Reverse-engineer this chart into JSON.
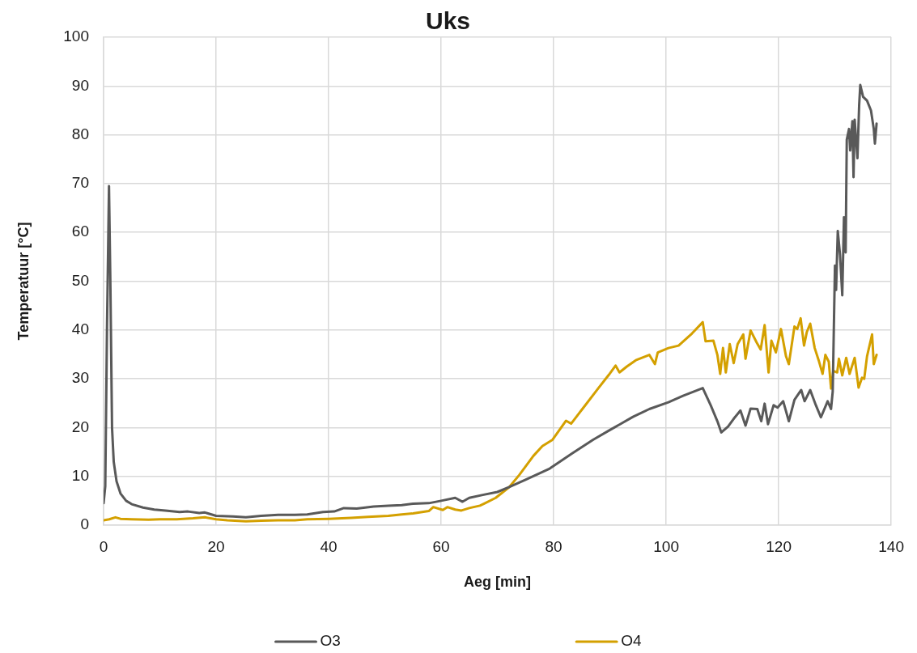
{
  "chart_data": {
    "type": "line",
    "title": "Uks",
    "xlabel": "Aeg [min]",
    "ylabel": "Temperatuur [°C]",
    "xlim": [
      0,
      140
    ],
    "xticks": [
      0,
      20,
      40,
      60,
      80,
      100,
      120,
      140
    ],
    "ylim": [
      0,
      100
    ],
    "yticks": [
      0,
      10,
      20,
      30,
      40,
      50,
      60,
      70,
      80,
      90,
      100
    ],
    "grid": true,
    "legend": "bottom",
    "marker": "none",
    "series": [
      {
        "name": "O3",
        "color": "#595959",
        "x": [
          0,
          0.3,
          0.6,
          0.96,
          1.2,
          1.5,
          1.8,
          2.3,
          3,
          4,
          5,
          7,
          9,
          11,
          13.5,
          15,
          17,
          18,
          20,
          23,
          25.3,
          28,
          31,
          34,
          36.2,
          39,
          41,
          42.7,
          45,
          48,
          50.6,
          53,
          55,
          57.8,
          60,
          62.5,
          63.8,
          65,
          67.4,
          70,
          72.1,
          75,
          79.3,
          83.3,
          87,
          90,
          94.1,
          97,
          100.4,
          103,
          106.5,
          107.9,
          109.1,
          109.8,
          111,
          112,
          113.2,
          114.1,
          115,
          116.2,
          116.9,
          117.5,
          118.1,
          119.1,
          119.8,
          120.8,
          121.8,
          122.8,
          124,
          124.6,
          125.6,
          126.6,
          127.5,
          128.7,
          129.3,
          129.6,
          130,
          130.2,
          130.5,
          130.9,
          131.3,
          131.6,
          131.9,
          132.1,
          132.5,
          132.7,
          133.1,
          133.3,
          133.5,
          134,
          134.3,
          134.5,
          135,
          135.7,
          136.4,
          136.9,
          137.1,
          137.4
        ],
        "values": [
          4.5,
          8,
          40,
          69.5,
          50,
          20,
          13,
          9,
          6.5,
          5,
          4.3,
          3.6,
          3.2,
          3.0,
          2.7,
          2.8,
          2.5,
          2.6,
          1.9,
          1.8,
          1.6,
          1.9,
          2.1,
          2.1,
          2.2,
          2.7,
          2.8,
          3.5,
          3.4,
          3.8,
          4.0,
          4.1,
          4.4,
          4.5,
          5.0,
          5.6,
          4.8,
          5.6,
          6.2,
          6.8,
          7.8,
          9.3,
          11.6,
          14.7,
          17.5,
          19.5,
          22.2,
          23.8,
          25.2,
          26.5,
          28.1,
          24.6,
          21.3,
          19.0,
          20.2,
          21.8,
          23.5,
          20.4,
          23.9,
          23.8,
          21.3,
          24.9,
          20.7,
          24.6,
          24.1,
          25.4,
          21.3,
          25.7,
          27.7,
          25.4,
          27.7,
          24.6,
          22.1,
          25.4,
          23.8,
          27.4,
          53.2,
          48.2,
          60.3,
          55.4,
          47.1,
          63.1,
          55.9,
          79.0,
          81.2,
          76.8,
          82.8,
          71.3,
          83.1,
          75.2,
          86.1,
          90.2,
          87.8,
          87.0,
          85.0,
          81.2,
          78.2,
          82.3
        ]
      },
      {
        "name": "O4",
        "color": "#d4a000",
        "x": [
          0,
          1,
          2.1,
          3,
          5,
          8,
          10,
          13,
          15.9,
          18,
          20,
          22,
          25.3,
          28,
          31,
          34,
          36.2,
          40,
          44,
          47,
          50.6,
          53,
          55,
          57.8,
          58.6,
          60.3,
          61.1,
          62.5,
          63.6,
          65,
          66.9,
          67.8,
          69.7,
          72.1,
          73.9,
          76.4,
          78,
          79.8,
          82.2,
          83.1,
          85.1,
          87.9,
          89.8,
          91,
          91.7,
          93,
          94.6,
          97,
          98,
          98.5,
          100.4,
          102.2,
          104.6,
          106.5,
          107,
          108.4,
          109.1,
          109.6,
          110.1,
          110.6,
          111.3,
          112,
          112.7,
          113.7,
          114.1,
          115,
          116.1,
          116.8,
          117.5,
          118.2,
          118.7,
          119.5,
          120.4,
          121.3,
          121.8,
          122.8,
          123.3,
          123.9,
          124.5,
          125,
          125.6,
          126.4,
          127.1,
          127.8,
          128.3,
          128.9,
          129.3,
          129.7,
          130.4,
          130.7,
          131.3,
          132,
          132.6,
          133.5,
          134.2,
          134.8,
          135.2,
          135.7,
          136.6,
          136.9,
          137.4
        ],
        "values": [
          1.0,
          1.2,
          1.6,
          1.3,
          1.2,
          1.1,
          1.2,
          1.2,
          1.4,
          1.6,
          1.2,
          1.0,
          0.8,
          0.9,
          1.0,
          1.0,
          1.2,
          1.3,
          1.5,
          1.7,
          1.9,
          2.2,
          2.4,
          2.9,
          3.7,
          3.1,
          3.7,
          3.2,
          3.0,
          3.5,
          4.0,
          4.5,
          5.6,
          7.8,
          10.3,
          14.2,
          16.2,
          17.5,
          21.4,
          20.8,
          23.8,
          28.0,
          30.8,
          32.7,
          31.3,
          32.5,
          33.8,
          34.9,
          33.0,
          35.4,
          36.3,
          36.8,
          39.3,
          41.6,
          37.7,
          37.8,
          34.9,
          31.0,
          36.3,
          31.3,
          37.1,
          33.2,
          37.1,
          39.1,
          34.1,
          39.9,
          37.4,
          36.0,
          41.0,
          31.3,
          37.8,
          35.4,
          40.2,
          34.6,
          33.0,
          40.7,
          40.2,
          42.4,
          36.8,
          39.6,
          41.3,
          36.3,
          33.8,
          31.0,
          34.9,
          33.5,
          28.0,
          31.6,
          31.3,
          34.1,
          30.7,
          34.3,
          31.0,
          34.3,
          28.2,
          30.2,
          30.0,
          34.6,
          39.1,
          33.0,
          34.9
        ]
      }
    ]
  }
}
